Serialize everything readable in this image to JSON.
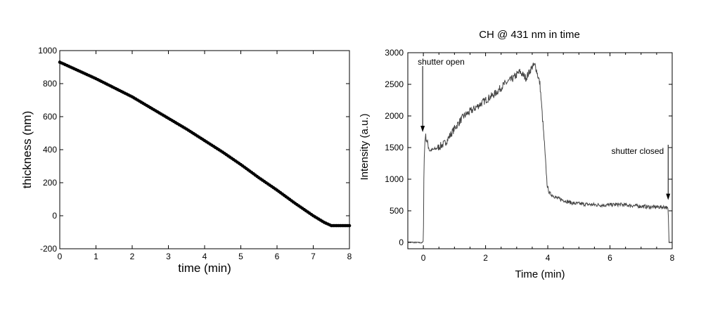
{
  "chart_data": [
    {
      "type": "scatter",
      "title": "",
      "xlabel": "time (min)",
      "ylabel": "thickness (nm)",
      "xlim": [
        0,
        8
      ],
      "ylim": [
        -200,
        1000
      ],
      "x_ticks": [
        "0",
        "1",
        "2",
        "3",
        "4",
        "5",
        "6",
        "7",
        "8"
      ],
      "y_ticks": [
        "-200",
        "0",
        "200",
        "400",
        "600",
        "800",
        "1000"
      ],
      "grid": false,
      "series": [
        {
          "x": [
            0,
            0.5,
            1.0,
            1.5,
            2.0,
            2.5,
            3.0,
            3.5,
            4.0,
            4.5,
            5.0,
            5.5,
            6.0,
            6.5,
            7.0,
            7.3,
            7.5,
            8.0
          ],
          "y": [
            930,
            880,
            830,
            775,
            720,
            655,
            590,
            525,
            455,
            385,
            310,
            230,
            155,
            75,
            0,
            -40,
            -60,
            -60
          ]
        }
      ]
    },
    {
      "type": "line",
      "title": "CH @ 431 nm in time",
      "xlabel": "Time (min)",
      "ylabel": "Intensity (a.u.)",
      "xlim": [
        -0.5,
        8
      ],
      "ylim": [
        -100,
        3000
      ],
      "x_ticks": [
        "0",
        "2",
        "4",
        "6",
        "8"
      ],
      "y_ticks": [
        "0",
        "500",
        "1000",
        "1500",
        "2000",
        "2500",
        "3000"
      ],
      "grid": false,
      "series": [
        {
          "x": [
            -0.5,
            -0.05,
            0.0,
            0.02,
            0.06,
            0.2,
            0.4,
            0.7,
            1.0,
            1.3,
            1.6,
            2.0,
            2.3,
            2.6,
            2.9,
            3.1,
            3.3,
            3.5,
            3.6,
            3.75,
            3.9,
            3.98,
            4.05,
            4.3,
            4.8,
            5.3,
            5.8,
            6.3,
            6.8,
            7.3,
            7.8,
            7.87,
            7.9
          ],
          "y": [
            5,
            -5,
            10,
            1250,
            1700,
            1450,
            1480,
            1570,
            1800,
            2000,
            2100,
            2250,
            2350,
            2500,
            2600,
            2700,
            2600,
            2780,
            2800,
            2500,
            1500,
            900,
            780,
            700,
            620,
            600,
            590,
            600,
            580,
            560,
            560,
            520,
            0
          ]
        }
      ],
      "annotations": [
        {
          "text": "shutter open",
          "x": 0.0,
          "y": 1700
        },
        {
          "text": "shutter closed",
          "x": 7.87,
          "y": 560
        }
      ]
    }
  ]
}
